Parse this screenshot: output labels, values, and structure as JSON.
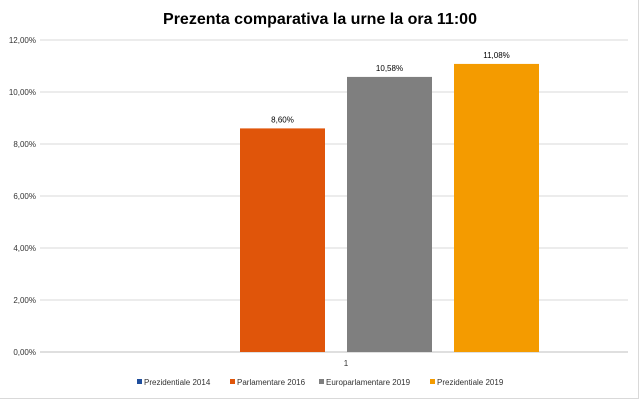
{
  "chart_data": {
    "type": "bar",
    "title": "Prezenta comparativa la urne la ora 11:00",
    "categories": [
      "1"
    ],
    "series": [
      {
        "name": "Prezidentiale 2014",
        "values": [
          0
        ],
        "label": "",
        "color": "#1f4e9c"
      },
      {
        "name": "Parlamentare 2016",
        "values": [
          8.6
        ],
        "label": "8,60%",
        "color": "#e0550a"
      },
      {
        "name": "Europarlamentare 2019",
        "values": [
          10.58
        ],
        "label": "10,58%",
        "color": "#7f7f7f"
      },
      {
        "name": "Prezidentiale 2019",
        "values": [
          11.08
        ],
        "label": "11,08%",
        "color": "#f49b00"
      }
    ],
    "yticks": [
      "0,00%",
      "2,00%",
      "4,00%",
      "6,00%",
      "8,00%",
      "10,00%",
      "12,00%"
    ],
    "ylim": [
      0,
      12
    ],
    "grid": true,
    "legend": "bottom",
    "xlabel": "",
    "ylabel": ""
  }
}
